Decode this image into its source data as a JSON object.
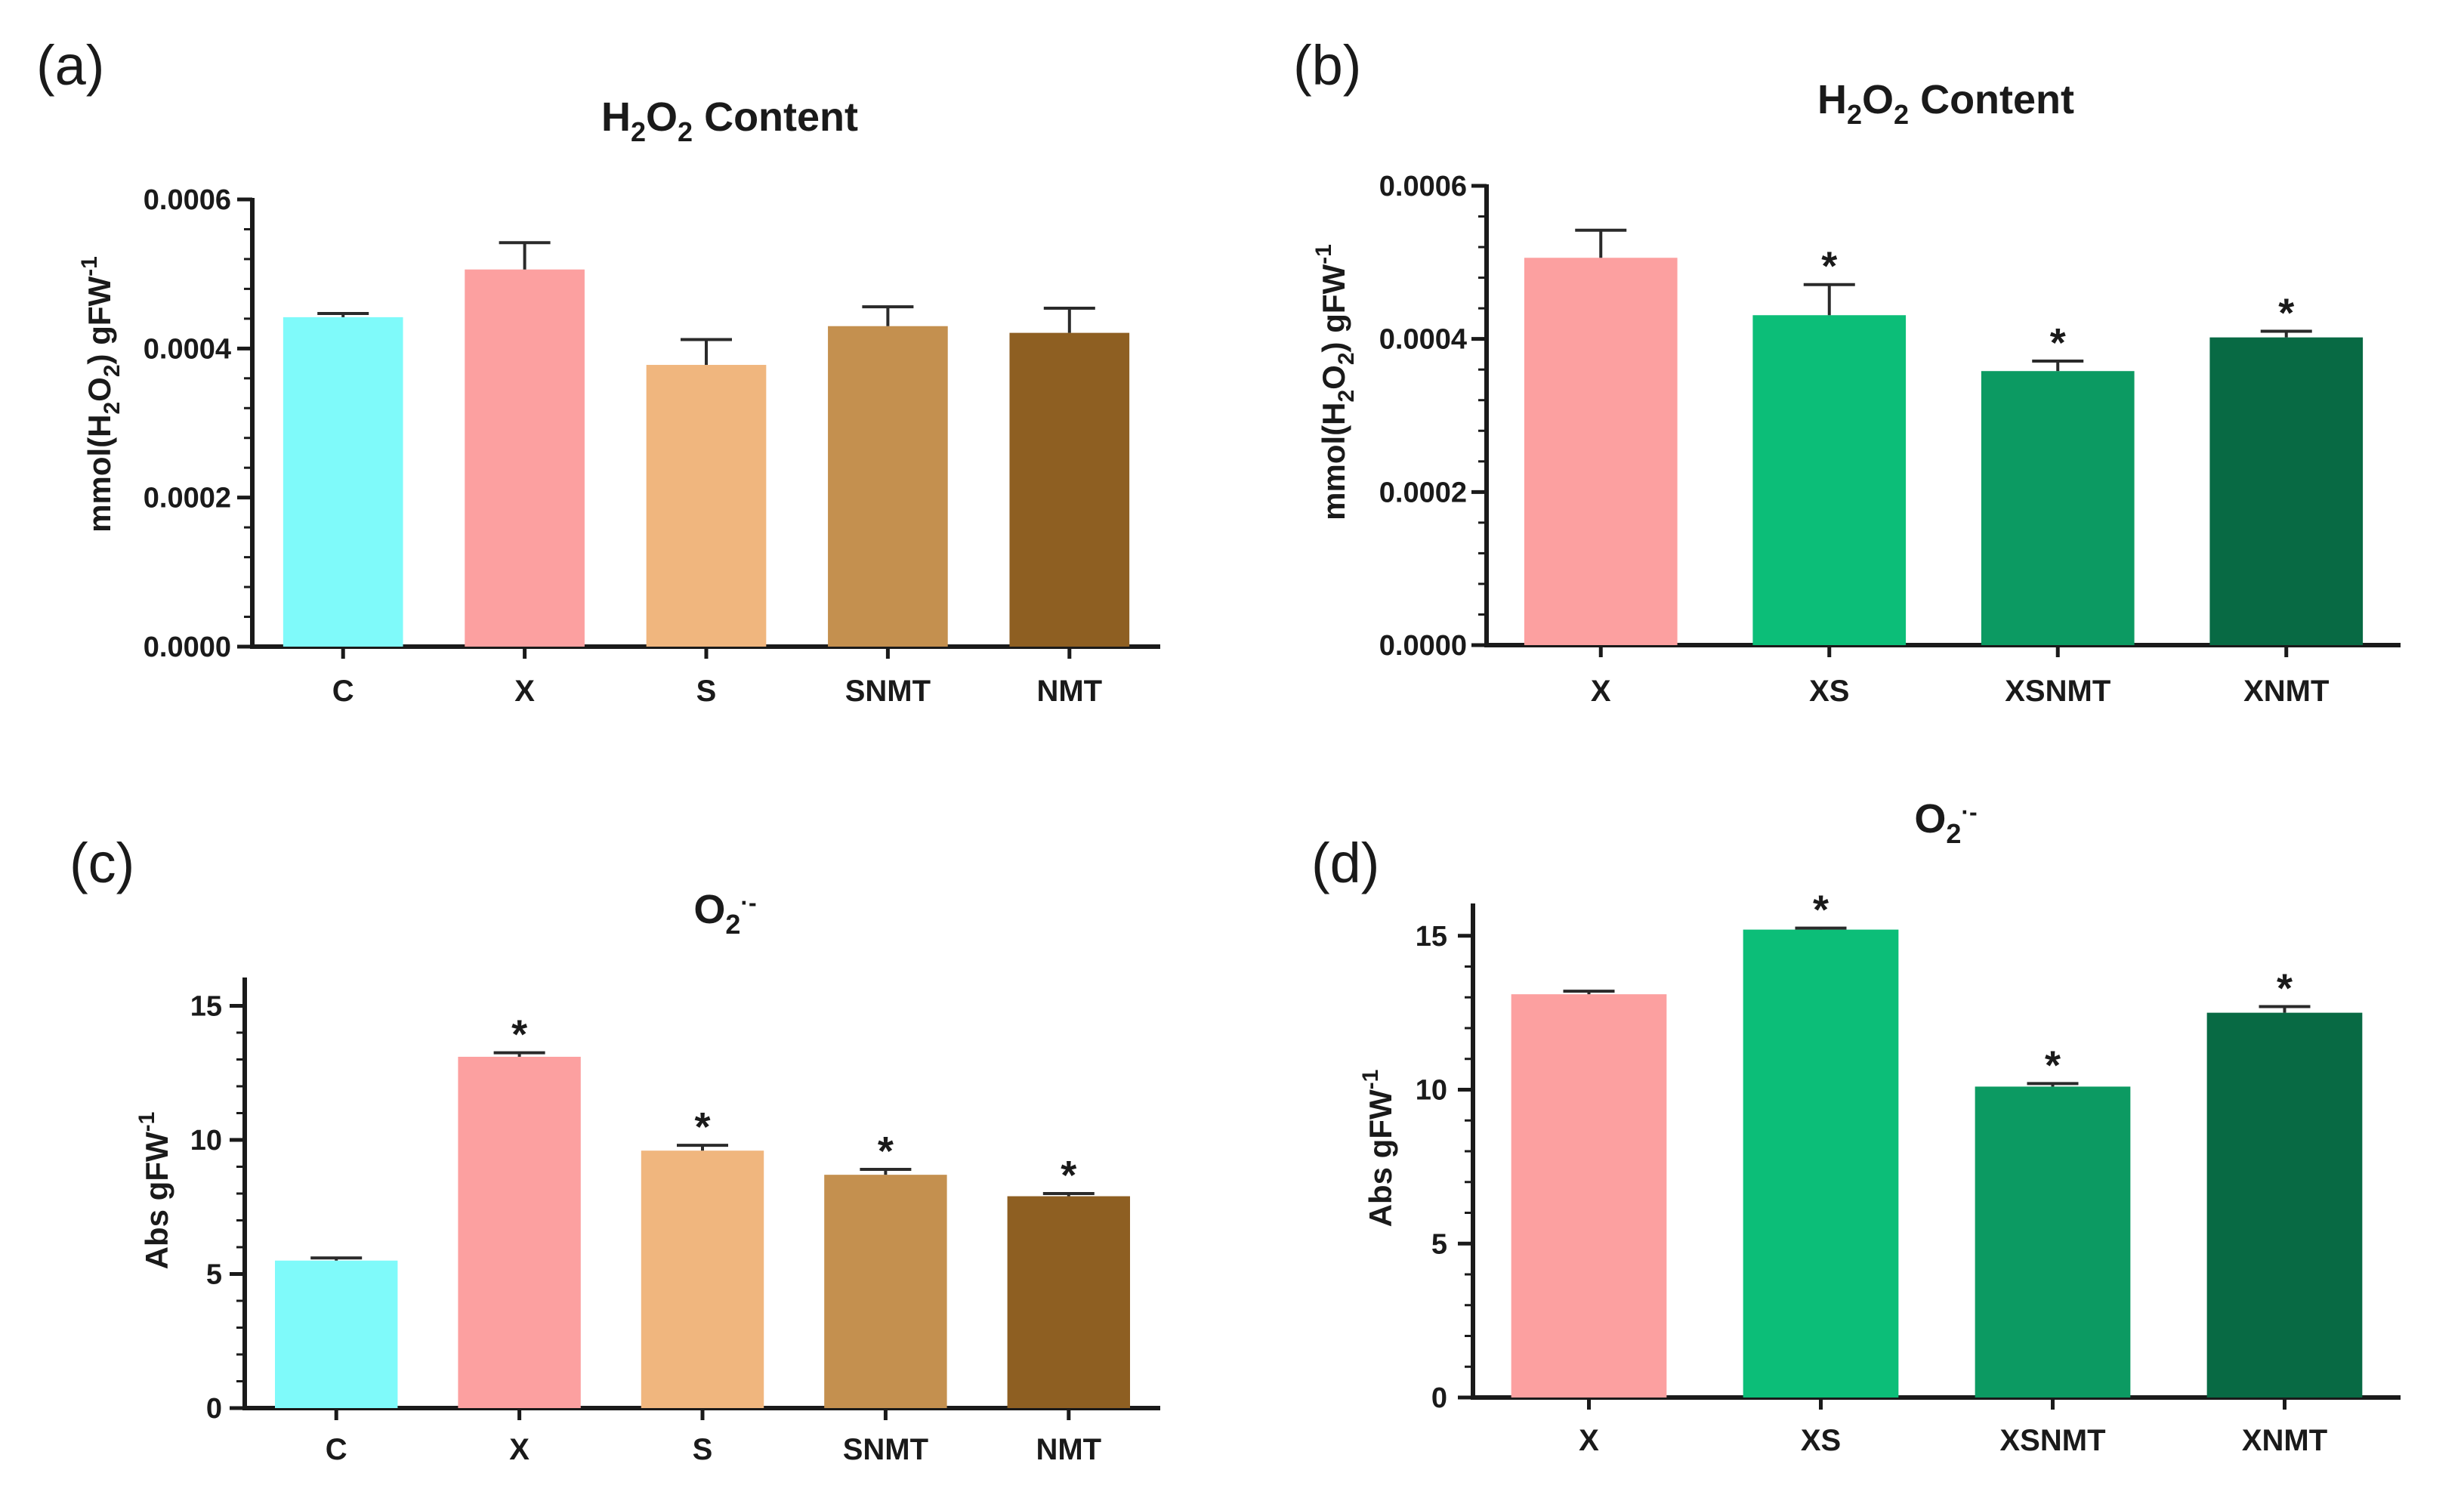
{
  "chart_data": [
    {
      "panel": "(a)",
      "type": "bar",
      "title": {
        "base": "H",
        "sub1": "2",
        "mid": "O",
        "sub2": "2",
        "tail": " Content"
      },
      "ylabel": {
        "pre": "mmol(H",
        "sub1": "2",
        "mid": "O",
        "sub2": "2",
        "post": ") gFW",
        "sup": "-1"
      },
      "xlabel": "",
      "ylim": [
        0,
        0.0006
      ],
      "yticks": [
        0,
        0.0002,
        0.0004,
        0.0006
      ],
      "ytick_labels": [
        "0.0000",
        "0.0002",
        "0.0004",
        "0.0006"
      ],
      "categories": [
        "C",
        "X",
        "S",
        "SNMT",
        "NMT"
      ],
      "values": [
        0.000442,
        0.000506,
        0.000378,
        0.00043,
        0.000421
      ],
      "errors": [
        5e-06,
        3.6e-05,
        3.4e-05,
        2.6e-05,
        3.3e-05
      ],
      "significance": [
        "",
        "",
        "",
        "",
        ""
      ],
      "colors": [
        "#7ffafa",
        "#fca0a0",
        "#f0b67e",
        "#c4904f",
        "#8e5f22"
      ]
    },
    {
      "panel": "(b)",
      "type": "bar",
      "title": {
        "base": "H",
        "sub1": "2",
        "mid": "O",
        "sub2": "2",
        "tail": " Content"
      },
      "ylabel": {
        "pre": "mmol(H",
        "sub1": "2",
        "mid": "O",
        "sub2": "2",
        "post": ") gFW",
        "sup": "-1"
      },
      "xlabel": "",
      "ylim": [
        0,
        0.0006
      ],
      "yticks": [
        0,
        0.0002,
        0.0004,
        0.0006
      ],
      "ytick_labels": [
        "0.0000",
        "0.0002",
        "0.0004",
        "0.0006"
      ],
      "categories": [
        "X",
        "XS",
        "XSNMT",
        "XNMT"
      ],
      "values": [
        0.000506,
        0.000431,
        0.000358,
        0.000402
      ],
      "errors": [
        3.6e-05,
        4e-05,
        1.3e-05,
        8e-06
      ],
      "significance": [
        "",
        "*",
        "*",
        "*"
      ],
      "colors": [
        "#fca0a0",
        "#0cbe78",
        "#0c9a62",
        "#086a44"
      ]
    },
    {
      "panel": "(c)",
      "type": "bar",
      "title": {
        "base": "O",
        "sub1": "2",
        "sup": "·-"
      },
      "ylabel": {
        "pre": "Abs gFW",
        "sup": "-1"
      },
      "xlabel": "",
      "ylim": [
        0,
        16
      ],
      "yticks": [
        0,
        5,
        10,
        15
      ],
      "ytick_labels": [
        "0",
        "5",
        "10",
        "15"
      ],
      "categories": [
        "C",
        "X",
        "S",
        "SNMT",
        "NMT"
      ],
      "values": [
        5.5,
        13.1,
        9.6,
        8.7,
        7.9
      ],
      "errors": [
        0.1,
        0.15,
        0.2,
        0.2,
        0.1
      ],
      "significance": [
        "",
        "*",
        "*",
        "*",
        "*"
      ],
      "colors": [
        "#7ffafa",
        "#fca0a0",
        "#f0b67e",
        "#c4904f",
        "#8e5f22"
      ]
    },
    {
      "panel": "(d)",
      "type": "bar",
      "title": {
        "base": "O",
        "sub1": "2",
        "sup": "·-"
      },
      "ylabel": {
        "pre": "Abs gFW",
        "sup": "-1"
      },
      "xlabel": "",
      "ylim": [
        0,
        16
      ],
      "yticks": [
        0,
        5,
        10,
        15
      ],
      "ytick_labels": [
        "0",
        "5",
        "10",
        "15"
      ],
      "categories": [
        "X",
        "XS",
        "XSNMT",
        "XNMT"
      ],
      "values": [
        13.1,
        15.2,
        10.1,
        12.5
      ],
      "errors": [
        0.1,
        0.05,
        0.1,
        0.2
      ],
      "significance": [
        "",
        "*",
        "*",
        "*"
      ],
      "colors": [
        "#fca0a0",
        "#0cbe78",
        "#0c9a62",
        "#086a44"
      ]
    }
  ]
}
